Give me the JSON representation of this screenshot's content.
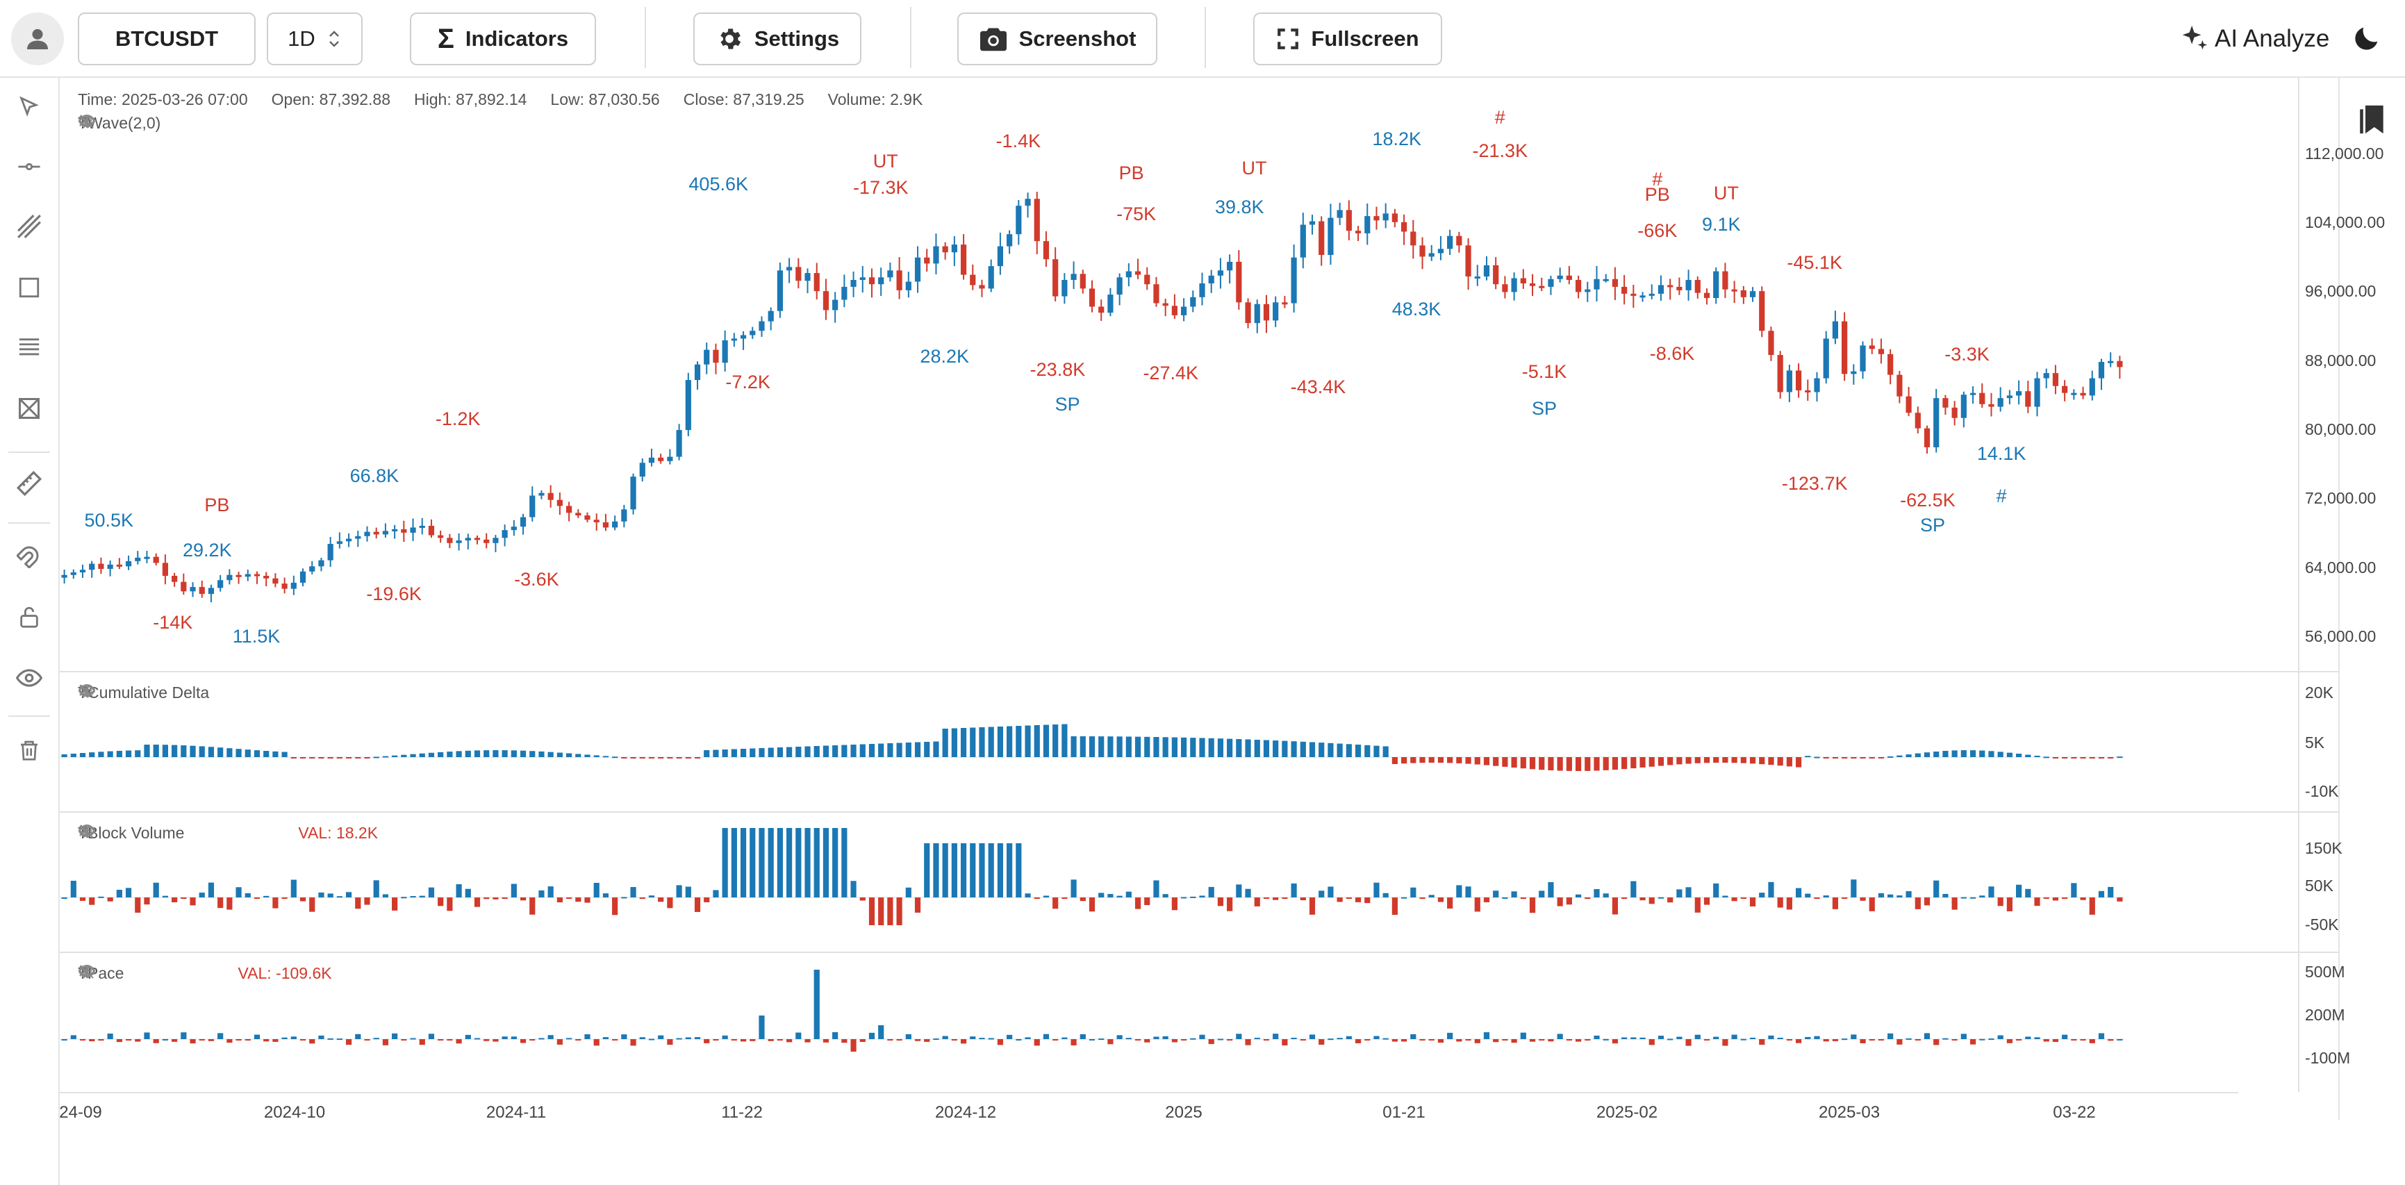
{
  "toolbar": {
    "symbol": "BTCUSDT",
    "interval": "1D",
    "indicators_label": "Indicators",
    "settings_label": "Settings",
    "screenshot_label": "Screenshot",
    "fullscreen_label": "Fullscreen",
    "ai_label": "AI Analyze"
  },
  "left_tools": [
    "cursor-icon",
    "horizontal-line-icon",
    "trend-line-icon",
    "rectangle-icon",
    "fib-icon",
    "pattern-icon",
    "ruler-icon",
    "magnet-icon",
    "lock-icon",
    "eye-icon",
    "trash-icon"
  ],
  "ohlc": {
    "time": "Time: 2025-03-26 07:00",
    "open": "Open: 87,392.88",
    "high": "High: 87,892.14",
    "low": "Low: 87,030.56",
    "close": "Close: 87,319.25",
    "volume": "Volume: 2.9K"
  },
  "indicators": {
    "twave": {
      "name": "TWave(2,0)"
    },
    "cum_delta": {
      "name": "TCumulative Delta"
    },
    "block_volume": {
      "name": "TBlock Volume",
      "value": "VAL: 18.2K"
    },
    "pace": {
      "name": "TPace",
      "value": "VAL: -109.6K"
    }
  },
  "price_axis": [
    "112,000.00",
    "104,000.00",
    "96,000.00",
    "88,000.00",
    "80,000.00",
    "72,000.00",
    "64,000.00",
    "56,000.00"
  ],
  "delta_axis": [
    "20K",
    "5K",
    "-10K"
  ],
  "block_axis": [
    "150K",
    "50K",
    "-50K"
  ],
  "pace_axis": [
    "500M",
    "200M",
    "-100M"
  ],
  "time_axis": [
    "24-09",
    "2024-10",
    "2024-11",
    "11-22",
    "2024-12",
    "2025",
    "01-21",
    "2025-02",
    "2025-03",
    "03-22"
  ],
  "colors": {
    "up": "#1b78b4",
    "down": "#d13a2b",
    "grid": "#e1e1e1"
  },
  "chart_data": {
    "type": "candlestick",
    "price_range": [
      54000,
      116000
    ],
    "closes": [
      63200,
      63500,
      63800,
      64500,
      63900,
      64400,
      64200,
      64800,
      65200,
      65300,
      64600,
      63100,
      62400,
      61300,
      61800,
      61000,
      61700,
      62600,
      63200,
      63000,
      63300,
      63100,
      62800,
      62200,
      61600,
      62300,
      63600,
      64200,
      64900,
      66800,
      67100,
      67400,
      67700,
      68200,
      67900,
      68300,
      68500,
      68100,
      68700,
      68900,
      67800,
      67500,
      66900,
      67200,
      67500,
      67300,
      66900,
      67500,
      68400,
      68800,
      69900,
      72400,
      72700,
      71900,
      71200,
      70400,
      70100,
      69600,
      69300,
      68700,
      69400,
      70800,
      74600,
      76200,
      76800,
      76400,
      76900,
      80000,
      85800,
      87600,
      89300,
      87800,
      90400,
      90600,
      91000,
      91500,
      92600,
      93800,
      98500,
      98900,
      97300,
      98200,
      96100,
      93900,
      95100,
      96600,
      97400,
      97700,
      96900,
      97700,
      98500,
      96200,
      97200,
      100000,
      99300,
      101300,
      100600,
      101500,
      98000,
      96800,
      96400,
      99000,
      101300,
      102700,
      106000,
      106800,
      101900,
      99800,
      95500,
      97400,
      98100,
      96400,
      94300,
      93600,
      95700,
      97700,
      98400,
      98000,
      96900,
      94700,
      94400,
      93300,
      94300,
      95400,
      97000,
      97900,
      98500,
      99500,
      94800,
      92400,
      94600,
      92700,
      94800,
      94700,
      100000,
      103800,
      104200,
      100300,
      104600,
      105500,
      103100,
      102800,
      104800,
      104300,
      105100,
      104100,
      103000,
      101400,
      100100,
      100500,
      101000,
      102500,
      101400,
      97800,
      97800,
      99100,
      96900,
      96000,
      97600,
      97000,
      96700,
      96600,
      97500,
      97900,
      97400,
      96000,
      96300,
      97500,
      97500,
      96600,
      95800,
      95600,
      95600,
      95800,
      96800,
      96600,
      96200,
      97400,
      95900,
      95300,
      98400,
      96300,
      96200,
      95400,
      96100,
      91500,
      88700,
      84400,
      86900,
      84600,
      84400,
      86000,
      90600,
      92600,
      86500,
      86800,
      89800,
      89400,
      88800,
      86400,
      83900,
      82000,
      80200,
      78000,
      83700,
      82600,
      81400,
      84100,
      84300,
      83000,
      82700,
      83700,
      84000,
      84500,
      82700,
      86000,
      86600,
      85100,
      84300,
      84300,
      84000,
      86000,
      87900,
      88000,
      87300
    ],
    "annotations": [
      {
        "text": "50.5K",
        "color": "up"
      },
      {
        "text": "PB",
        "color": "down"
      },
      {
        "text": "29.2K",
        "color": "up"
      },
      {
        "text": "66.8K",
        "color": "up"
      },
      {
        "text": "-1.2K",
        "color": "down"
      },
      {
        "text": "-14K",
        "color": "down"
      },
      {
        "text": "11.5K",
        "color": "up"
      },
      {
        "text": "-19.6K",
        "color": "down"
      },
      {
        "text": "-3.6K",
        "color": "down"
      },
      {
        "text": "405.6K",
        "color": "up"
      },
      {
        "text": "-7.2K",
        "color": "down"
      },
      {
        "text": "UT",
        "color": "down"
      },
      {
        "text": "-17.3K",
        "color": "down"
      },
      {
        "text": "28.2K",
        "color": "up"
      },
      {
        "text": "-1.4K",
        "color": "down"
      },
      {
        "text": "-23.8K",
        "color": "down"
      },
      {
        "text": "SP",
        "color": "up"
      },
      {
        "text": "PB",
        "color": "down"
      },
      {
        "text": "-75K",
        "color": "down"
      },
      {
        "text": "-27.4K",
        "color": "down"
      },
      {
        "text": "UT",
        "color": "down"
      },
      {
        "text": "39.8K",
        "color": "up"
      },
      {
        "text": "-43.4K",
        "color": "down"
      },
      {
        "text": "18.2K",
        "color": "up"
      },
      {
        "text": "48.3K",
        "color": "up"
      },
      {
        "text": "#",
        "color": "down"
      },
      {
        "text": "-21.3K",
        "color": "down"
      },
      {
        "text": "-5.1K",
        "color": "down"
      },
      {
        "text": "SP",
        "color": "up"
      },
      {
        "text": "#",
        "color": "down"
      },
      {
        "text": "PB",
        "color": "down"
      },
      {
        "text": "-66K",
        "color": "down"
      },
      {
        "text": "UT",
        "color": "down"
      },
      {
        "text": "9.1K",
        "color": "up"
      },
      {
        "text": "-8.6K",
        "color": "down"
      },
      {
        "text": "-45.1K",
        "color": "down"
      },
      {
        "text": "-123.7K",
        "color": "down"
      },
      {
        "text": "-3.3K",
        "color": "down"
      },
      {
        "text": "-62.5K",
        "color": "down"
      },
      {
        "text": "SP",
        "color": "up"
      },
      {
        "text": "14.1K",
        "color": "up"
      },
      {
        "text": "#",
        "color": "up"
      }
    ]
  }
}
